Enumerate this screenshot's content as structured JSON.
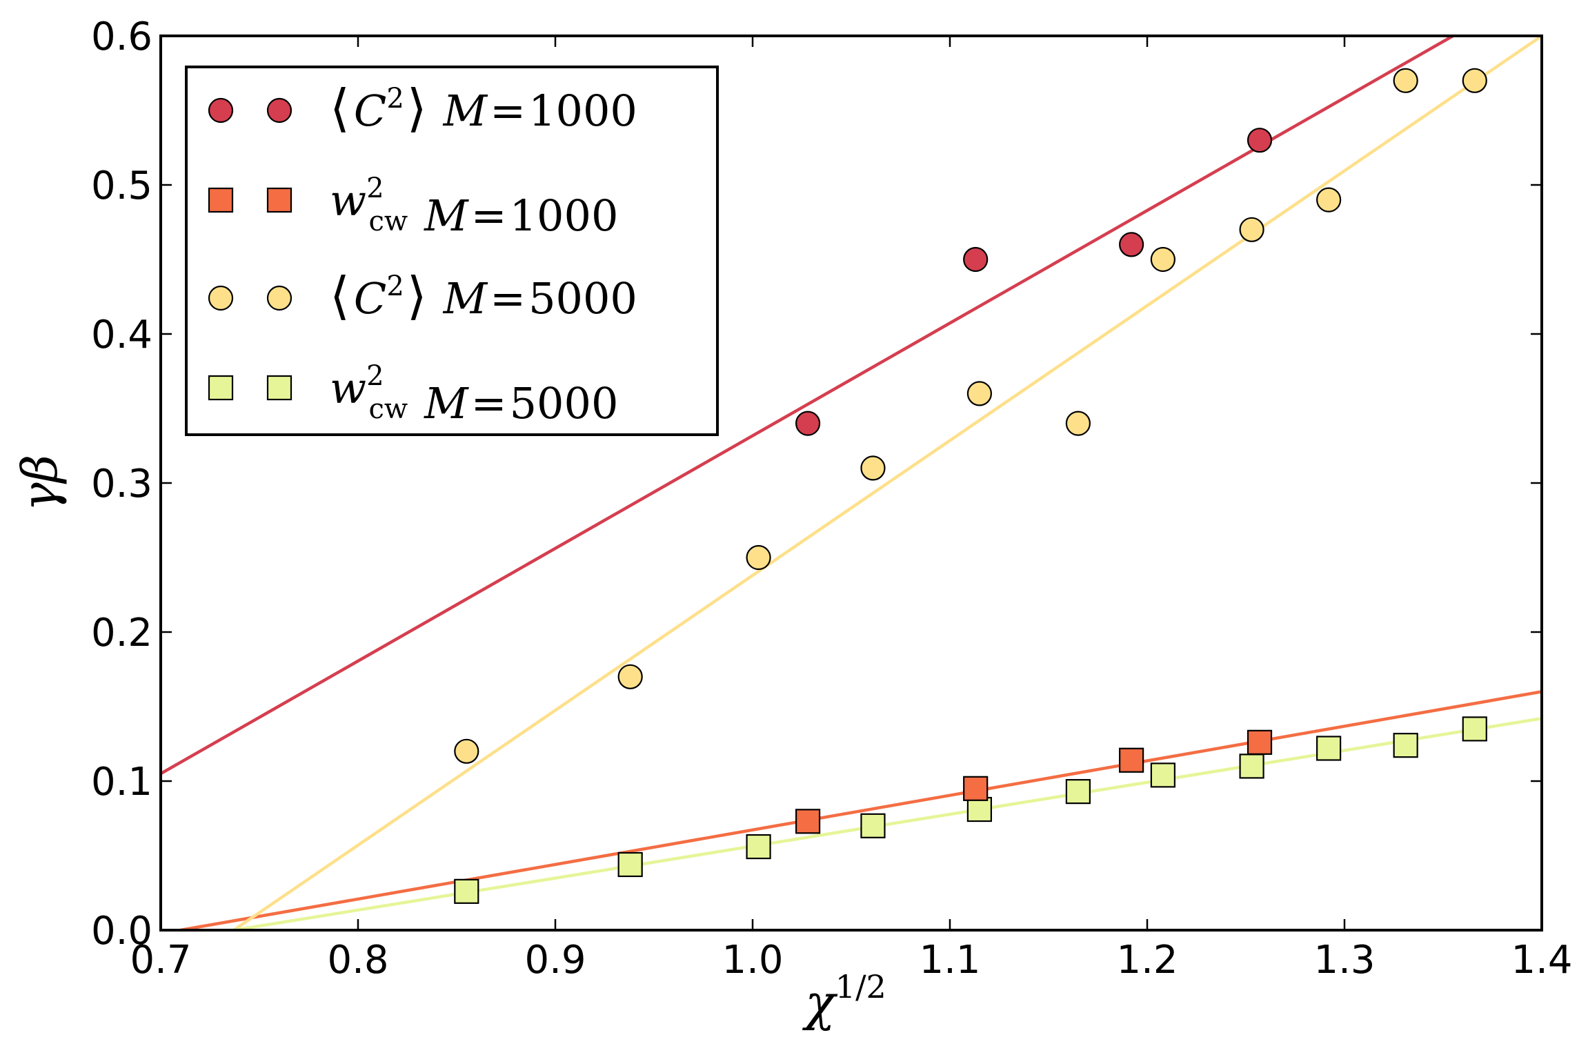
{
  "chart_data": {
    "type": "scatter",
    "xlabel_base": "χ",
    "xlabel_exp": "1/2",
    "ylabel": "γβ",
    "xlim": [
      0.7,
      1.4
    ],
    "ylim": [
      0.0,
      0.6
    ],
    "xticks": [
      0.7,
      0.8,
      0.9,
      1.0,
      1.1,
      1.2,
      1.3,
      1.4
    ],
    "yticks": [
      0.0,
      0.1,
      0.2,
      0.3,
      0.4,
      0.5,
      0.6
    ],
    "xtick_labels": [
      "0.7",
      "0.8",
      "0.9",
      "1.0",
      "1.1",
      "1.2",
      "1.3",
      "1.4"
    ],
    "ytick_labels": [
      "0.0",
      "0.1",
      "0.2",
      "0.3",
      "0.4",
      "0.5",
      "0.6"
    ],
    "legend_position": "top-left",
    "series": [
      {
        "id": "c2-m1000",
        "marker": "circle",
        "color": "#d53e4f",
        "legend": {
          "q": "C",
          "sup": "2",
          "lhs": "M",
          "eq": "=",
          "value": "1000"
        },
        "x": [
          1.028,
          1.113,
          1.192,
          1.257
        ],
        "y": [
          0.34,
          0.45,
          0.46,
          0.53
        ],
        "fit": {
          "x": [
            0.7,
            1.355
          ],
          "y": [
            0.105,
            0.6
          ]
        }
      },
      {
        "id": "w2-m1000",
        "marker": "square",
        "color": "#f46d43",
        "legend": {
          "w": "w",
          "sup": "2",
          "sub": "cw",
          "lhs": "M",
          "eq": "=",
          "value": "1000"
        },
        "x": [
          1.028,
          1.113,
          1.192,
          1.257
        ],
        "y": [
          0.073,
          0.095,
          0.114,
          0.126
        ],
        "fit": {
          "x": [
            0.71,
            1.4
          ],
          "y": [
            0.0,
            0.16
          ]
        }
      },
      {
        "id": "c2-m5000",
        "marker": "circle",
        "color": "#fee08b",
        "legend": {
          "q": "C",
          "sup": "2",
          "lhs": "M",
          "eq": "=",
          "value": "5000"
        },
        "x": [
          0.855,
          0.938,
          1.003,
          1.061,
          1.115,
          1.165,
          1.208,
          1.253,
          1.292,
          1.331,
          1.366
        ],
        "y": [
          0.12,
          0.17,
          0.25,
          0.31,
          0.36,
          0.34,
          0.45,
          0.47,
          0.49,
          0.57,
          0.57
        ],
        "fit": {
          "x": [
            0.737,
            1.4
          ],
          "y": [
            0.0,
            0.6
          ]
        }
      },
      {
        "id": "w2-m5000",
        "marker": "square",
        "color": "#e6f598",
        "legend": {
          "w": "w",
          "sup": "2",
          "sub": "cw",
          "lhs": "M",
          "eq": "=",
          "value": "5000"
        },
        "x": [
          0.855,
          0.938,
          1.003,
          1.061,
          1.115,
          1.165,
          1.208,
          1.253,
          1.292,
          1.331,
          1.366
        ],
        "y": [
          0.026,
          0.044,
          0.056,
          0.07,
          0.081,
          0.093,
          0.104,
          0.11,
          0.122,
          0.124,
          0.135
        ],
        "fit": {
          "x": [
            0.737,
            1.4
          ],
          "y": [
            0.0,
            0.142
          ]
        }
      }
    ]
  }
}
